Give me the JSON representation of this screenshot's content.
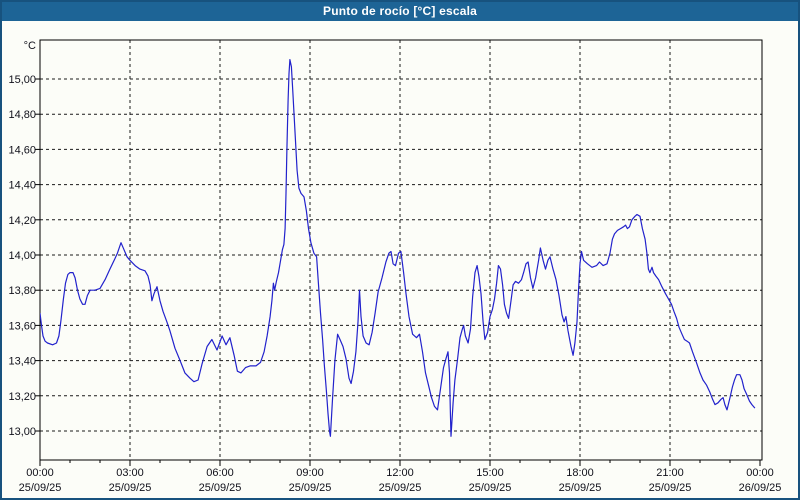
{
  "window": {
    "title": "Punto de rocío [°C] escala",
    "titlebar_color": "#1D6496",
    "frame_color": "#17527E",
    "background_color": "#FCFDF8"
  },
  "chart_data": {
    "type": "line",
    "title": "Punto de rocío [°C] escala",
    "xlabel": "",
    "ylabel": "°C",
    "legend": "none",
    "grid": "dashed",
    "grid_color": "#1a1a1a",
    "series_color": "#2222CC",
    "axis_color": "#000000",
    "ylim": [
      12.83,
      15.22
    ],
    "xlim_hours": [
      0,
      24
    ],
    "minor_x_tick_hours": 1,
    "yticks": {
      "values": [
        15.0,
        14.8,
        14.6,
        14.4,
        14.2,
        14.0,
        13.8,
        13.6,
        13.4,
        13.2,
        13.0
      ],
      "labels": [
        "15,00",
        "14,80",
        "14,60",
        "14,40",
        "14,20",
        "14,00",
        "13,80",
        "13,60",
        "13,40",
        "13,20",
        "13,00"
      ]
    },
    "xticks": {
      "hours": [
        0,
        3,
        6,
        9,
        12,
        15,
        18,
        21,
        24
      ],
      "time_labels": [
        "00:00",
        "03:00",
        "06:00",
        "09:00",
        "12:00",
        "15:00",
        "18:00",
        "21:00",
        "00:00"
      ],
      "date_labels": [
        "25/09/25",
        "25/09/25",
        "25/09/25",
        "25/09/25",
        "25/09/25",
        "25/09/25",
        "25/09/25",
        "25/09/25",
        "26/09/25"
      ]
    },
    "series": [
      {
        "name": "Punto de rocío [°C]",
        "points": [
          [
            0.0,
            13.67
          ],
          [
            0.05,
            13.6
          ],
          [
            0.1,
            13.54
          ],
          [
            0.17,
            13.51
          ],
          [
            0.25,
            13.5
          ],
          [
            0.42,
            13.49
          ],
          [
            0.55,
            13.5
          ],
          [
            0.63,
            13.54
          ],
          [
            0.7,
            13.63
          ],
          [
            0.78,
            13.75
          ],
          [
            0.85,
            13.84
          ],
          [
            0.93,
            13.89
          ],
          [
            1.0,
            13.9
          ],
          [
            1.1,
            13.9
          ],
          [
            1.17,
            13.87
          ],
          [
            1.25,
            13.8
          ],
          [
            1.33,
            13.75
          ],
          [
            1.42,
            13.72
          ],
          [
            1.5,
            13.72
          ],
          [
            1.58,
            13.77
          ],
          [
            1.67,
            13.8
          ],
          [
            1.83,
            13.8
          ],
          [
            2.0,
            13.81
          ],
          [
            2.17,
            13.86
          ],
          [
            2.33,
            13.92
          ],
          [
            2.5,
            13.98
          ],
          [
            2.58,
            14.01
          ],
          [
            2.7,
            14.07
          ],
          [
            2.8,
            14.03
          ],
          [
            2.9,
            13.99
          ],
          [
            3.0,
            13.97
          ],
          [
            3.17,
            13.94
          ],
          [
            3.33,
            13.92
          ],
          [
            3.5,
            13.91
          ],
          [
            3.6,
            13.88
          ],
          [
            3.67,
            13.83
          ],
          [
            3.73,
            13.74
          ],
          [
            3.8,
            13.78
          ],
          [
            3.9,
            13.82
          ],
          [
            4.0,
            13.74
          ],
          [
            4.1,
            13.68
          ],
          [
            4.23,
            13.62
          ],
          [
            4.33,
            13.57
          ],
          [
            4.5,
            13.47
          ],
          [
            4.67,
            13.4
          ],
          [
            4.83,
            13.33
          ],
          [
            5.0,
            13.3
          ],
          [
            5.13,
            13.28
          ],
          [
            5.27,
            13.29
          ],
          [
            5.4,
            13.38
          ],
          [
            5.57,
            13.48
          ],
          [
            5.73,
            13.52
          ],
          [
            5.9,
            13.46
          ],
          [
            6.07,
            13.54
          ],
          [
            6.2,
            13.49
          ],
          [
            6.33,
            13.53
          ],
          [
            6.47,
            13.43
          ],
          [
            6.58,
            13.34
          ],
          [
            6.7,
            13.33
          ],
          [
            6.85,
            13.36
          ],
          [
            7.0,
            13.37
          ],
          [
            7.2,
            13.37
          ],
          [
            7.35,
            13.39
          ],
          [
            7.47,
            13.45
          ],
          [
            7.57,
            13.54
          ],
          [
            7.67,
            13.65
          ],
          [
            7.73,
            13.74
          ],
          [
            7.78,
            13.84
          ],
          [
            7.82,
            13.8
          ],
          [
            7.88,
            13.85
          ],
          [
            7.95,
            13.9
          ],
          [
            8.02,
            13.97
          ],
          [
            8.08,
            14.03
          ],
          [
            8.13,
            14.06
          ],
          [
            8.17,
            14.15
          ],
          [
            8.2,
            14.35
          ],
          [
            8.23,
            14.6
          ],
          [
            8.27,
            14.88
          ],
          [
            8.3,
            15.03
          ],
          [
            8.33,
            15.11
          ],
          [
            8.38,
            15.07
          ],
          [
            8.43,
            14.92
          ],
          [
            8.5,
            14.7
          ],
          [
            8.57,
            14.48
          ],
          [
            8.63,
            14.38
          ],
          [
            8.7,
            14.35
          ],
          [
            8.8,
            14.33
          ],
          [
            8.88,
            14.25
          ],
          [
            8.95,
            14.15
          ],
          [
            9.03,
            14.07
          ],
          [
            9.13,
            14.01
          ],
          [
            9.22,
            13.99
          ],
          [
            9.28,
            13.84
          ],
          [
            9.35,
            13.67
          ],
          [
            9.42,
            13.52
          ],
          [
            9.48,
            13.37
          ],
          [
            9.55,
            13.22
          ],
          [
            9.6,
            13.1
          ],
          [
            9.65,
            13.0
          ],
          [
            9.68,
            12.97
          ],
          [
            9.75,
            13.18
          ],
          [
            9.83,
            13.4
          ],
          [
            9.92,
            13.55
          ],
          [
            10.0,
            13.52
          ],
          [
            10.1,
            13.48
          ],
          [
            10.2,
            13.41
          ],
          [
            10.3,
            13.3
          ],
          [
            10.37,
            13.27
          ],
          [
            10.45,
            13.34
          ],
          [
            10.53,
            13.45
          ],
          [
            10.6,
            13.62
          ],
          [
            10.65,
            13.8
          ],
          [
            10.7,
            13.65
          ],
          [
            10.77,
            13.54
          ],
          [
            10.87,
            13.5
          ],
          [
            10.97,
            13.49
          ],
          [
            11.07,
            13.56
          ],
          [
            11.17,
            13.67
          ],
          [
            11.27,
            13.79
          ],
          [
            11.4,
            13.87
          ],
          [
            11.53,
            13.96
          ],
          [
            11.63,
            14.01
          ],
          [
            11.7,
            14.02
          ],
          [
            11.77,
            13.95
          ],
          [
            11.85,
            13.94
          ],
          [
            11.95,
            14.01
          ],
          [
            12.03,
            14.02
          ],
          [
            12.12,
            13.9
          ],
          [
            12.2,
            13.78
          ],
          [
            12.3,
            13.65
          ],
          [
            12.42,
            13.55
          ],
          [
            12.55,
            13.53
          ],
          [
            12.65,
            13.55
          ],
          [
            12.75,
            13.45
          ],
          [
            12.85,
            13.33
          ],
          [
            12.95,
            13.26
          ],
          [
            13.05,
            13.19
          ],
          [
            13.15,
            13.14
          ],
          [
            13.25,
            13.12
          ],
          [
            13.35,
            13.24
          ],
          [
            13.45,
            13.36
          ],
          [
            13.53,
            13.41
          ],
          [
            13.6,
            13.45
          ],
          [
            13.65,
            13.33
          ],
          [
            13.68,
            13.1
          ],
          [
            13.7,
            12.97
          ],
          [
            13.77,
            13.16
          ],
          [
            13.83,
            13.29
          ],
          [
            13.92,
            13.41
          ],
          [
            14.0,
            13.53
          ],
          [
            14.08,
            13.58
          ],
          [
            14.12,
            13.6
          ],
          [
            14.18,
            13.54
          ],
          [
            14.27,
            13.5
          ],
          [
            14.35,
            13.58
          ],
          [
            14.42,
            13.76
          ],
          [
            14.5,
            13.9
          ],
          [
            14.57,
            13.94
          ],
          [
            14.63,
            13.88
          ],
          [
            14.7,
            13.78
          ],
          [
            14.77,
            13.62
          ],
          [
            14.83,
            13.52
          ],
          [
            14.92,
            13.56
          ],
          [
            15.0,
            13.65
          ],
          [
            15.08,
            13.69
          ],
          [
            15.15,
            13.75
          ],
          [
            15.22,
            13.84
          ],
          [
            15.28,
            13.94
          ],
          [
            15.35,
            13.92
          ],
          [
            15.42,
            13.83
          ],
          [
            15.48,
            13.72
          ],
          [
            15.55,
            13.67
          ],
          [
            15.62,
            13.64
          ],
          [
            15.7,
            13.74
          ],
          [
            15.77,
            13.83
          ],
          [
            15.85,
            13.85
          ],
          [
            15.95,
            13.84
          ],
          [
            16.05,
            13.86
          ],
          [
            16.12,
            13.9
          ],
          [
            16.2,
            13.95
          ],
          [
            16.27,
            13.96
          ],
          [
            16.35,
            13.87
          ],
          [
            16.43,
            13.81
          ],
          [
            16.52,
            13.87
          ],
          [
            16.62,
            13.97
          ],
          [
            16.68,
            14.04
          ],
          [
            16.77,
            13.97
          ],
          [
            16.85,
            13.92
          ],
          [
            16.93,
            13.97
          ],
          [
            17.0,
            13.99
          ],
          [
            17.1,
            13.92
          ],
          [
            17.2,
            13.86
          ],
          [
            17.3,
            13.77
          ],
          [
            17.4,
            13.66
          ],
          [
            17.47,
            13.62
          ],
          [
            17.53,
            13.65
          ],
          [
            17.6,
            13.57
          ],
          [
            17.7,
            13.48
          ],
          [
            17.77,
            13.43
          ],
          [
            17.83,
            13.5
          ],
          [
            17.9,
            13.62
          ],
          [
            17.95,
            13.8
          ],
          [
            18.0,
            13.95
          ],
          [
            18.05,
            14.02
          ],
          [
            18.12,
            13.97
          ],
          [
            18.25,
            13.95
          ],
          [
            18.4,
            13.93
          ],
          [
            18.55,
            13.94
          ],
          [
            18.65,
            13.96
          ],
          [
            18.77,
            13.94
          ],
          [
            18.9,
            13.95
          ],
          [
            19.0,
            14.01
          ],
          [
            19.08,
            14.09
          ],
          [
            19.15,
            14.12
          ],
          [
            19.25,
            14.14
          ],
          [
            19.35,
            14.15
          ],
          [
            19.45,
            14.16
          ],
          [
            19.52,
            14.17
          ],
          [
            19.58,
            14.15
          ],
          [
            19.65,
            14.16
          ],
          [
            19.73,
            14.2
          ],
          [
            19.83,
            14.22
          ],
          [
            19.9,
            14.23
          ],
          [
            20.0,
            14.22
          ],
          [
            20.08,
            14.15
          ],
          [
            20.17,
            14.09
          ],
          [
            20.23,
            14.01
          ],
          [
            20.28,
            13.92
          ],
          [
            20.33,
            13.9
          ],
          [
            20.4,
            13.93
          ],
          [
            20.45,
            13.9
          ],
          [
            20.53,
            13.88
          ],
          [
            20.62,
            13.86
          ],
          [
            20.73,
            13.82
          ],
          [
            20.85,
            13.78
          ],
          [
            20.95,
            13.75
          ],
          [
            21.05,
            13.72
          ],
          [
            21.13,
            13.68
          ],
          [
            21.22,
            13.64
          ],
          [
            21.3,
            13.59
          ],
          [
            21.4,
            13.55
          ],
          [
            21.48,
            13.52
          ],
          [
            21.57,
            13.51
          ],
          [
            21.65,
            13.5
          ],
          [
            21.75,
            13.45
          ],
          [
            21.88,
            13.39
          ],
          [
            22.0,
            13.33
          ],
          [
            22.1,
            13.29
          ],
          [
            22.22,
            13.26
          ],
          [
            22.33,
            13.22
          ],
          [
            22.42,
            13.18
          ],
          [
            22.5,
            13.15
          ],
          [
            22.6,
            13.16
          ],
          [
            22.7,
            13.18
          ],
          [
            22.77,
            13.19
          ],
          [
            22.83,
            13.15
          ],
          [
            22.9,
            13.12
          ],
          [
            23.0,
            13.19
          ],
          [
            23.08,
            13.25
          ],
          [
            23.15,
            13.29
          ],
          [
            23.22,
            13.32
          ],
          [
            23.33,
            13.32
          ],
          [
            23.4,
            13.29
          ],
          [
            23.47,
            13.24
          ],
          [
            23.55,
            13.21
          ],
          [
            23.65,
            13.17
          ],
          [
            23.73,
            13.15
          ],
          [
            23.83,
            13.13
          ]
        ]
      }
    ]
  }
}
